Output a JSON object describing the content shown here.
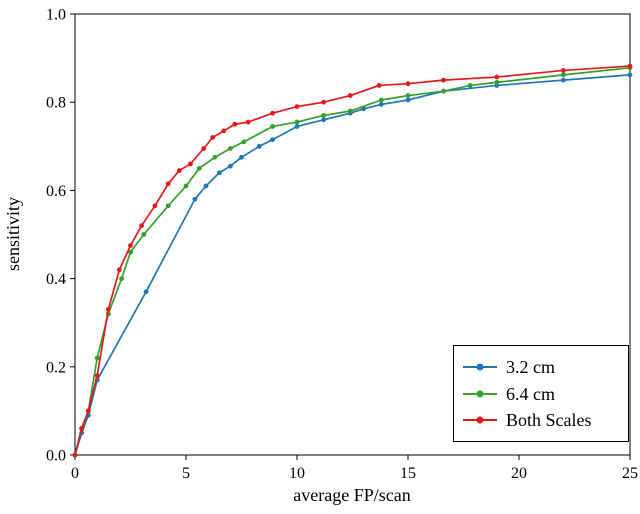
{
  "chart_data": {
    "type": "line",
    "title": "",
    "xlabel": "average FP/scan",
    "ylabel": "sensitivity",
    "xlim": [
      0,
      25
    ],
    "ylim": [
      0.0,
      1.0
    ],
    "xticks": [
      0,
      5,
      10,
      15,
      20,
      25
    ],
    "yticks": [
      0.0,
      0.2,
      0.4,
      0.6,
      0.8,
      1.0
    ],
    "grid": false,
    "legend_position": "lower right",
    "series": [
      {
        "name": "3.2 cm",
        "color": "#1f77b4",
        "points": [
          [
            0,
            0
          ],
          [
            0.3,
            0.05
          ],
          [
            0.6,
            0.09
          ],
          [
            1.0,
            0.17
          ],
          [
            3.2,
            0.37
          ],
          [
            5.4,
            0.58
          ],
          [
            5.9,
            0.61
          ],
          [
            6.5,
            0.64
          ],
          [
            7.0,
            0.655
          ],
          [
            7.5,
            0.675
          ],
          [
            8.3,
            0.7
          ],
          [
            8.9,
            0.715
          ],
          [
            10.0,
            0.745
          ],
          [
            11.2,
            0.76
          ],
          [
            12.4,
            0.775
          ],
          [
            13.0,
            0.785
          ],
          [
            13.8,
            0.795
          ],
          [
            15.0,
            0.805
          ],
          [
            16.6,
            0.825
          ],
          [
            19.0,
            0.838
          ],
          [
            22.0,
            0.85
          ],
          [
            25.0,
            0.862
          ]
        ]
      },
      {
        "name": "6.4 cm",
        "color": "#33a02c",
        "points": [
          [
            0,
            0
          ],
          [
            0.3,
            0.06
          ],
          [
            0.6,
            0.1
          ],
          [
            1.0,
            0.22
          ],
          [
            1.5,
            0.32
          ],
          [
            2.1,
            0.4
          ],
          [
            2.5,
            0.46
          ],
          [
            3.1,
            0.5
          ],
          [
            4.2,
            0.565
          ],
          [
            5.0,
            0.61
          ],
          [
            5.6,
            0.65
          ],
          [
            6.3,
            0.675
          ],
          [
            7.0,
            0.695
          ],
          [
            7.6,
            0.71
          ],
          [
            8.9,
            0.745
          ],
          [
            10.0,
            0.755
          ],
          [
            11.2,
            0.77
          ],
          [
            12.4,
            0.78
          ],
          [
            13.8,
            0.805
          ],
          [
            15.0,
            0.815
          ],
          [
            16.6,
            0.825
          ],
          [
            17.8,
            0.838
          ],
          [
            19.0,
            0.845
          ],
          [
            22.0,
            0.862
          ],
          [
            25.0,
            0.878
          ]
        ]
      },
      {
        "name": "Both Scales",
        "color": "#e31a1c",
        "points": [
          [
            0,
            0
          ],
          [
            0.3,
            0.06
          ],
          [
            0.6,
            0.1
          ],
          [
            1.0,
            0.18
          ],
          [
            1.5,
            0.33
          ],
          [
            2.0,
            0.42
          ],
          [
            2.5,
            0.475
          ],
          [
            3.0,
            0.52
          ],
          [
            3.6,
            0.565
          ],
          [
            4.2,
            0.615
          ],
          [
            4.7,
            0.645
          ],
          [
            5.2,
            0.66
          ],
          [
            5.8,
            0.695
          ],
          [
            6.2,
            0.72
          ],
          [
            6.7,
            0.735
          ],
          [
            7.2,
            0.75
          ],
          [
            7.8,
            0.755
          ],
          [
            8.9,
            0.775
          ],
          [
            10.0,
            0.79
          ],
          [
            11.2,
            0.8
          ],
          [
            12.4,
            0.815
          ],
          [
            13.7,
            0.838
          ],
          [
            15.0,
            0.842
          ],
          [
            16.6,
            0.85
          ],
          [
            19.0,
            0.857
          ],
          [
            22.0,
            0.872
          ],
          [
            25.0,
            0.882
          ]
        ]
      }
    ]
  }
}
